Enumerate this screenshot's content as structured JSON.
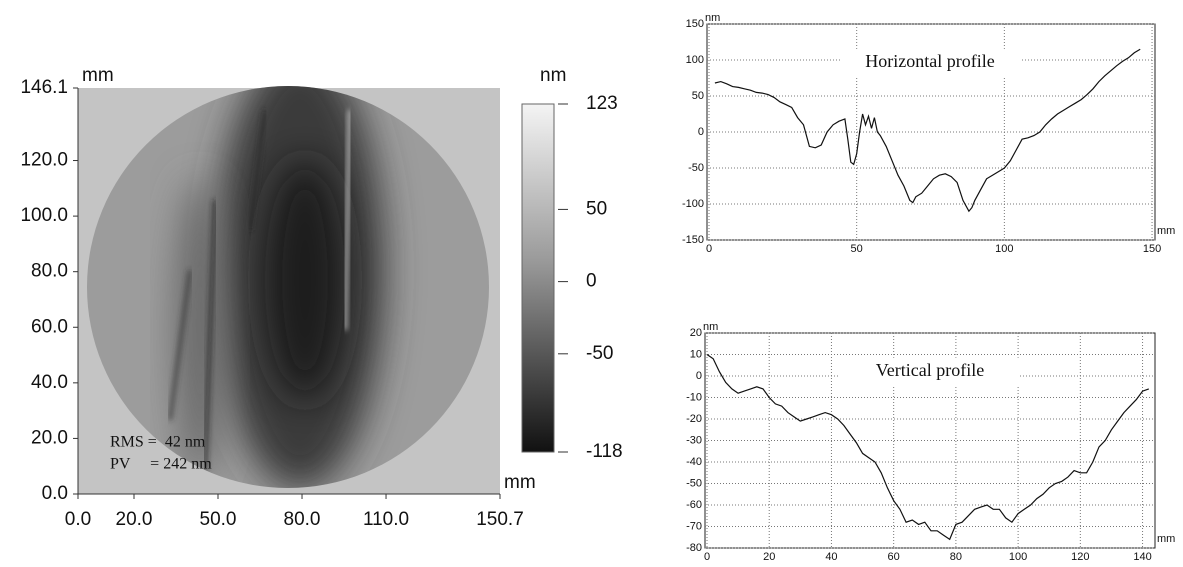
{
  "chart_data": [
    {
      "type": "surface-map",
      "ylabel": "mm",
      "xunit": "mm",
      "colorbar_label": "nm",
      "xlim": [
        0,
        150.7
      ],
      "ylim": [
        0,
        146.1
      ],
      "xticks": [
        {
          "value": 0,
          "label": "0.0"
        },
        {
          "value": 20,
          "label": "20.0"
        },
        {
          "value": 50,
          "label": "50.0"
        },
        {
          "value": 80,
          "label": "80.0"
        },
        {
          "value": 110,
          "label": "110.0"
        },
        150.7
      ],
      "yticks": [
        {
          "value": 0,
          "label": "0.0"
        },
        {
          "value": 20,
          "label": "20.0"
        },
        {
          "value": 40,
          "label": "40.0"
        },
        {
          "value": 60,
          "label": "60.0"
        },
        {
          "value": 80,
          "label": "80.0"
        },
        {
          "value": 100,
          "label": "100.0"
        },
        {
          "value": 120,
          "label": "120.0"
        },
        146.1
      ],
      "clim": [
        -118,
        123
      ],
      "cticks": [
        123,
        50,
        0,
        -50,
        -118
      ],
      "annotations": [
        "RMS =  42 nm",
        "PV     = 242 nm"
      ]
    },
    {
      "type": "line",
      "title": "Horizontal profile",
      "yunit": "nm",
      "xunit": "mm",
      "xlim": [
        0,
        151
      ],
      "ylim": [
        -150,
        150
      ],
      "xticks": [
        0,
        50,
        100,
        150
      ],
      "yticks": [
        -150,
        -100,
        -50,
        0,
        50,
        100,
        150
      ],
      "grid": true,
      "x": [
        2,
        4,
        6,
        8,
        10,
        12,
        14,
        16,
        18,
        20,
        22,
        24,
        26,
        28,
        30,
        32,
        34,
        36,
        38,
        40,
        42,
        44,
        46,
        47,
        48,
        49,
        50,
        51,
        52,
        53,
        54,
        55,
        56,
        57,
        58,
        60,
        62,
        64,
        66,
        68,
        69,
        70,
        72,
        74,
        76,
        78,
        80,
        82,
        84,
        86,
        88,
        89,
        90,
        92,
        94,
        96,
        98,
        100,
        102,
        104,
        106,
        108,
        110,
        112,
        114,
        116,
        118,
        120,
        122,
        124,
        126,
        128,
        130,
        132,
        134,
        136,
        138,
        140,
        142,
        144,
        146
      ],
      "series": [
        {
          "color": "#111111",
          "values": [
            68,
            70,
            67,
            63,
            62,
            60,
            58,
            55,
            54,
            52,
            48,
            42,
            38,
            34,
            20,
            10,
            -20,
            -22,
            -18,
            0,
            10,
            15,
            18,
            -10,
            -42,
            -45,
            -30,
            0,
            25,
            10,
            22,
            5,
            20,
            0,
            -5,
            -20,
            -40,
            -60,
            -75,
            -95,
            -98,
            -90,
            -85,
            -75,
            -65,
            -60,
            -58,
            -62,
            -70,
            -95,
            -110,
            -105,
            -95,
            -80,
            -65,
            -60,
            -55,
            -50,
            -40,
            -25,
            -10,
            -8,
            -5,
            0,
            10,
            18,
            25,
            30,
            35,
            40,
            45,
            52,
            60,
            70,
            78,
            85,
            92,
            98,
            103,
            110,
            115
          ]
        }
      ]
    },
    {
      "type": "line",
      "title": "Vertical profile",
      "yunit": "nm",
      "xunit": "mm",
      "xlim": [
        0,
        144
      ],
      "ylim": [
        -80,
        20
      ],
      "xticks": [
        0,
        20,
        40,
        60,
        80,
        100,
        120,
        140
      ],
      "yticks": [
        -80,
        -70,
        -60,
        -50,
        -40,
        -30,
        -20,
        -10,
        0,
        10,
        20
      ],
      "grid": true,
      "x": [
        0,
        2,
        4,
        6,
        8,
        10,
        12,
        14,
        16,
        18,
        20,
        22,
        24,
        26,
        28,
        30,
        32,
        34,
        36,
        38,
        40,
        42,
        44,
        46,
        48,
        50,
        52,
        54,
        56,
        58,
        60,
        62,
        64,
        66,
        68,
        70,
        72,
        74,
        76,
        78,
        80,
        82,
        84,
        86,
        88,
        90,
        92,
        94,
        96,
        98,
        100,
        102,
        104,
        106,
        108,
        110,
        112,
        114,
        116,
        118,
        120,
        122,
        124,
        126,
        128,
        130,
        132,
        134,
        136,
        138,
        140,
        142
      ],
      "series": [
        {
          "color": "#111111",
          "values": [
            10,
            8,
            2,
            -3,
            -6,
            -8,
            -7,
            -6,
            -5,
            -6,
            -10,
            -13,
            -14,
            -17,
            -19,
            -21,
            -20,
            -19,
            -18,
            -17,
            -18,
            -20,
            -23,
            -27,
            -31,
            -36,
            -38,
            -40,
            -45,
            -52,
            -58,
            -62,
            -68,
            -67,
            -69,
            -68,
            -72,
            -72,
            -74,
            -76,
            -69,
            -68,
            -65,
            -62,
            -61,
            -60,
            -62,
            -62,
            -66,
            -68,
            -64,
            -62,
            -60,
            -57,
            -55,
            -52,
            -50,
            -49,
            -47,
            -44,
            -45,
            -45,
            -40,
            -33,
            -30,
            -25,
            -21,
            -17,
            -14,
            -11,
            -7,
            -6
          ]
        }
      ]
    }
  ]
}
